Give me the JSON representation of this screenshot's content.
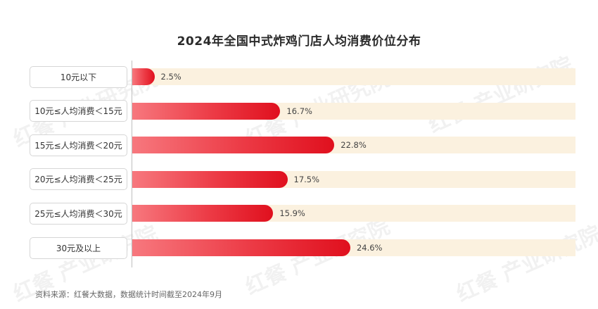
{
  "chart_data": {
    "type": "bar",
    "orientation": "horizontal",
    "title": "2024年全国中式炸鸡门店人均消费价位分布",
    "categories": [
      "10元以下",
      "10元≤人均消费＜15元",
      "15元≤人均消费＜20元",
      "20元≤人均消费＜25元",
      "25元≤人均消费＜30元",
      "30元及以上"
    ],
    "values": [
      2.5,
      16.7,
      22.8,
      17.5,
      15.9,
      24.6
    ],
    "value_labels": [
      "2.5%",
      "16.7%",
      "22.8%",
      "17.5%",
      "15.9%",
      "24.6%"
    ],
    "xlim": [
      0,
      50
    ],
    "unit": "%",
    "legend": "none",
    "grid": false,
    "colors": {
      "bar_start": "#f7787e",
      "bar_end": "#e0101e",
      "track": "#fbf1df"
    }
  },
  "footer": {
    "source": "资料来源：红餐大数据，数据统计时间截至2024年9月"
  },
  "watermark": {
    "text": "红餐 产业研究院"
  }
}
